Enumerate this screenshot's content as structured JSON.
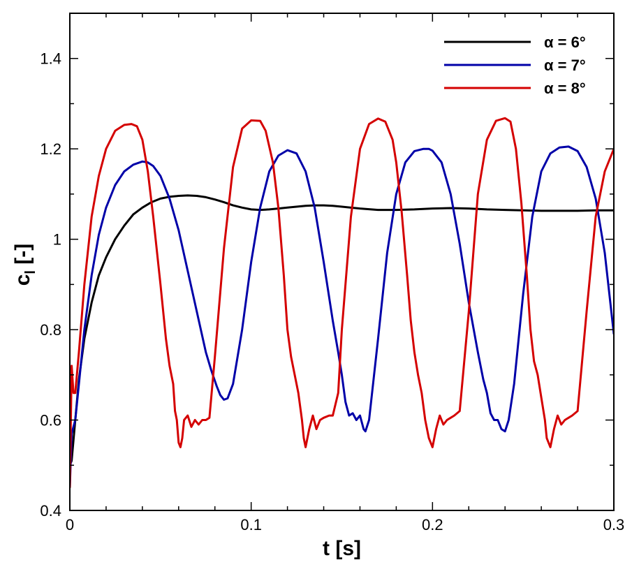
{
  "chart_data": {
    "type": "line",
    "title": "",
    "xlabel": "t [s]",
    "ylabel_main": "c",
    "ylabel_sub": "l",
    "ylabel_suffix": " [-]",
    "xlim": [
      0,
      0.3
    ],
    "ylim": [
      0.4,
      1.5
    ],
    "x_ticks": [
      0,
      0.1,
      0.2,
      0.3
    ],
    "x_tick_labels": [
      "0",
      "0.1",
      "0.2",
      "0.3"
    ],
    "y_ticks": [
      0.4,
      0.6,
      0.8,
      1.0,
      1.2,
      1.4
    ],
    "y_tick_labels": [
      "0.4",
      "0.6",
      "0.8",
      "1",
      "1.2",
      "1.4"
    ],
    "grid": false,
    "legend_position": "top-right",
    "series": [
      {
        "name": "α = 6°",
        "color": "#000000",
        "x": [
          0,
          0.001,
          0.003,
          0.005,
          0.008,
          0.012,
          0.016,
          0.02,
          0.025,
          0.03,
          0.035,
          0.04,
          0.045,
          0.05,
          0.055,
          0.06,
          0.065,
          0.07,
          0.075,
          0.08,
          0.085,
          0.09,
          0.095,
          0.1,
          0.105,
          0.11,
          0.115,
          0.12,
          0.125,
          0.13,
          0.135,
          0.14,
          0.145,
          0.15,
          0.16,
          0.17,
          0.18,
          0.19,
          0.2,
          0.21,
          0.22,
          0.23,
          0.24,
          0.25,
          0.26,
          0.27,
          0.28,
          0.29,
          0.3
        ],
        "y": [
          0.5,
          0.51,
          0.6,
          0.69,
          0.78,
          0.86,
          0.92,
          0.96,
          1.0,
          1.03,
          1.055,
          1.07,
          1.082,
          1.09,
          1.094,
          1.096,
          1.097,
          1.096,
          1.093,
          1.088,
          1.082,
          1.075,
          1.07,
          1.066,
          1.065,
          1.066,
          1.068,
          1.07,
          1.072,
          1.074,
          1.075,
          1.075,
          1.074,
          1.072,
          1.068,
          1.065,
          1.065,
          1.066,
          1.068,
          1.069,
          1.068,
          1.066,
          1.065,
          1.064,
          1.063,
          1.063,
          1.063,
          1.064,
          1.064
        ]
      },
      {
        "name": "α = 7°",
        "color": "#0000a8",
        "x": [
          0,
          0.001,
          0.003,
          0.005,
          0.008,
          0.012,
          0.016,
          0.02,
          0.025,
          0.03,
          0.035,
          0.04,
          0.043,
          0.046,
          0.05,
          0.055,
          0.06,
          0.065,
          0.07,
          0.075,
          0.078,
          0.081,
          0.083,
          0.085,
          0.087,
          0.09,
          0.095,
          0.1,
          0.105,
          0.11,
          0.115,
          0.12,
          0.125,
          0.13,
          0.135,
          0.14,
          0.145,
          0.148,
          0.15,
          0.152,
          0.154,
          0.156,
          0.158,
          0.16,
          0.162,
          0.163,
          0.165,
          0.17,
          0.175,
          0.18,
          0.185,
          0.19,
          0.195,
          0.198,
          0.2,
          0.205,
          0.21,
          0.215,
          0.22,
          0.225,
          0.228,
          0.23,
          0.232,
          0.234,
          0.236,
          0.238,
          0.24,
          0.242,
          0.245,
          0.25,
          0.255,
          0.26,
          0.265,
          0.27,
          0.275,
          0.28,
          0.285,
          0.29,
          0.295,
          0.3
        ],
        "y": [
          0.45,
          0.57,
          0.6,
          0.68,
          0.8,
          0.92,
          1.01,
          1.07,
          1.12,
          1.15,
          1.165,
          1.172,
          1.17,
          1.162,
          1.14,
          1.09,
          1.02,
          0.93,
          0.84,
          0.75,
          0.71,
          0.675,
          0.655,
          0.645,
          0.648,
          0.68,
          0.8,
          0.95,
          1.07,
          1.15,
          1.185,
          1.197,
          1.19,
          1.15,
          1.07,
          0.95,
          0.82,
          0.75,
          0.7,
          0.64,
          0.61,
          0.615,
          0.6,
          0.61,
          0.58,
          0.575,
          0.6,
          0.78,
          0.97,
          1.1,
          1.17,
          1.195,
          1.2,
          1.2,
          1.196,
          1.17,
          1.1,
          0.99,
          0.86,
          0.75,
          0.69,
          0.66,
          0.615,
          0.6,
          0.6,
          0.58,
          0.575,
          0.6,
          0.68,
          0.88,
          1.05,
          1.15,
          1.19,
          1.203,
          1.205,
          1.195,
          1.16,
          1.09,
          0.97,
          0.79
        ]
      },
      {
        "name": "α = 8°",
        "color": "#d40000",
        "x": [
          0,
          0.001,
          0.002,
          0.003,
          0.005,
          0.008,
          0.012,
          0.016,
          0.02,
          0.025,
          0.03,
          0.034,
          0.037,
          0.04,
          0.043,
          0.046,
          0.05,
          0.053,
          0.055,
          0.057,
          0.058,
          0.059,
          0.06,
          0.061,
          0.062,
          0.063,
          0.065,
          0.067,
          0.069,
          0.071,
          0.073,
          0.075,
          0.077,
          0.08,
          0.085,
          0.09,
          0.095,
          0.1,
          0.105,
          0.108,
          0.112,
          0.115,
          0.118,
          0.12,
          0.122,
          0.124,
          0.126,
          0.128,
          0.129,
          0.13,
          0.132,
          0.134,
          0.136,
          0.138,
          0.14,
          0.143,
          0.145,
          0.148,
          0.15,
          0.155,
          0.16,
          0.165,
          0.17,
          0.174,
          0.178,
          0.18,
          0.183,
          0.186,
          0.188,
          0.19,
          0.192,
          0.194,
          0.196,
          0.198,
          0.2,
          0.202,
          0.204,
          0.206,
          0.208,
          0.21,
          0.212,
          0.215,
          0.22,
          0.225,
          0.23,
          0.235,
          0.24,
          0.243,
          0.246,
          0.249,
          0.252,
          0.254,
          0.256,
          0.258,
          0.26,
          0.262,
          0.263,
          0.265,
          0.267,
          0.269,
          0.271,
          0.273,
          0.275,
          0.277,
          0.28,
          0.285,
          0.29,
          0.295,
          0.3
        ],
        "y": [
          0.45,
          0.72,
          0.66,
          0.66,
          0.75,
          0.9,
          1.05,
          1.14,
          1.2,
          1.24,
          1.253,
          1.255,
          1.25,
          1.22,
          1.15,
          1.05,
          0.9,
          0.78,
          0.72,
          0.68,
          0.62,
          0.6,
          0.55,
          0.54,
          0.56,
          0.6,
          0.61,
          0.585,
          0.6,
          0.59,
          0.6,
          0.6,
          0.605,
          0.74,
          0.98,
          1.16,
          1.245,
          1.263,
          1.262,
          1.24,
          1.17,
          1.07,
          0.92,
          0.8,
          0.74,
          0.7,
          0.66,
          0.6,
          0.56,
          0.54,
          0.58,
          0.61,
          0.58,
          0.6,
          0.605,
          0.61,
          0.61,
          0.66,
          0.8,
          1.05,
          1.2,
          1.255,
          1.267,
          1.26,
          1.22,
          1.17,
          1.06,
          0.92,
          0.82,
          0.75,
          0.7,
          0.66,
          0.6,
          0.56,
          0.54,
          0.58,
          0.61,
          0.59,
          0.6,
          0.605,
          0.61,
          0.62,
          0.84,
          1.1,
          1.22,
          1.262,
          1.268,
          1.26,
          1.2,
          1.08,
          0.92,
          0.8,
          0.73,
          0.7,
          0.65,
          0.6,
          0.56,
          0.54,
          0.58,
          0.61,
          0.59,
          0.6,
          0.605,
          0.61,
          0.62,
          0.84,
          1.05,
          1.15,
          1.2
        ]
      }
    ]
  }
}
